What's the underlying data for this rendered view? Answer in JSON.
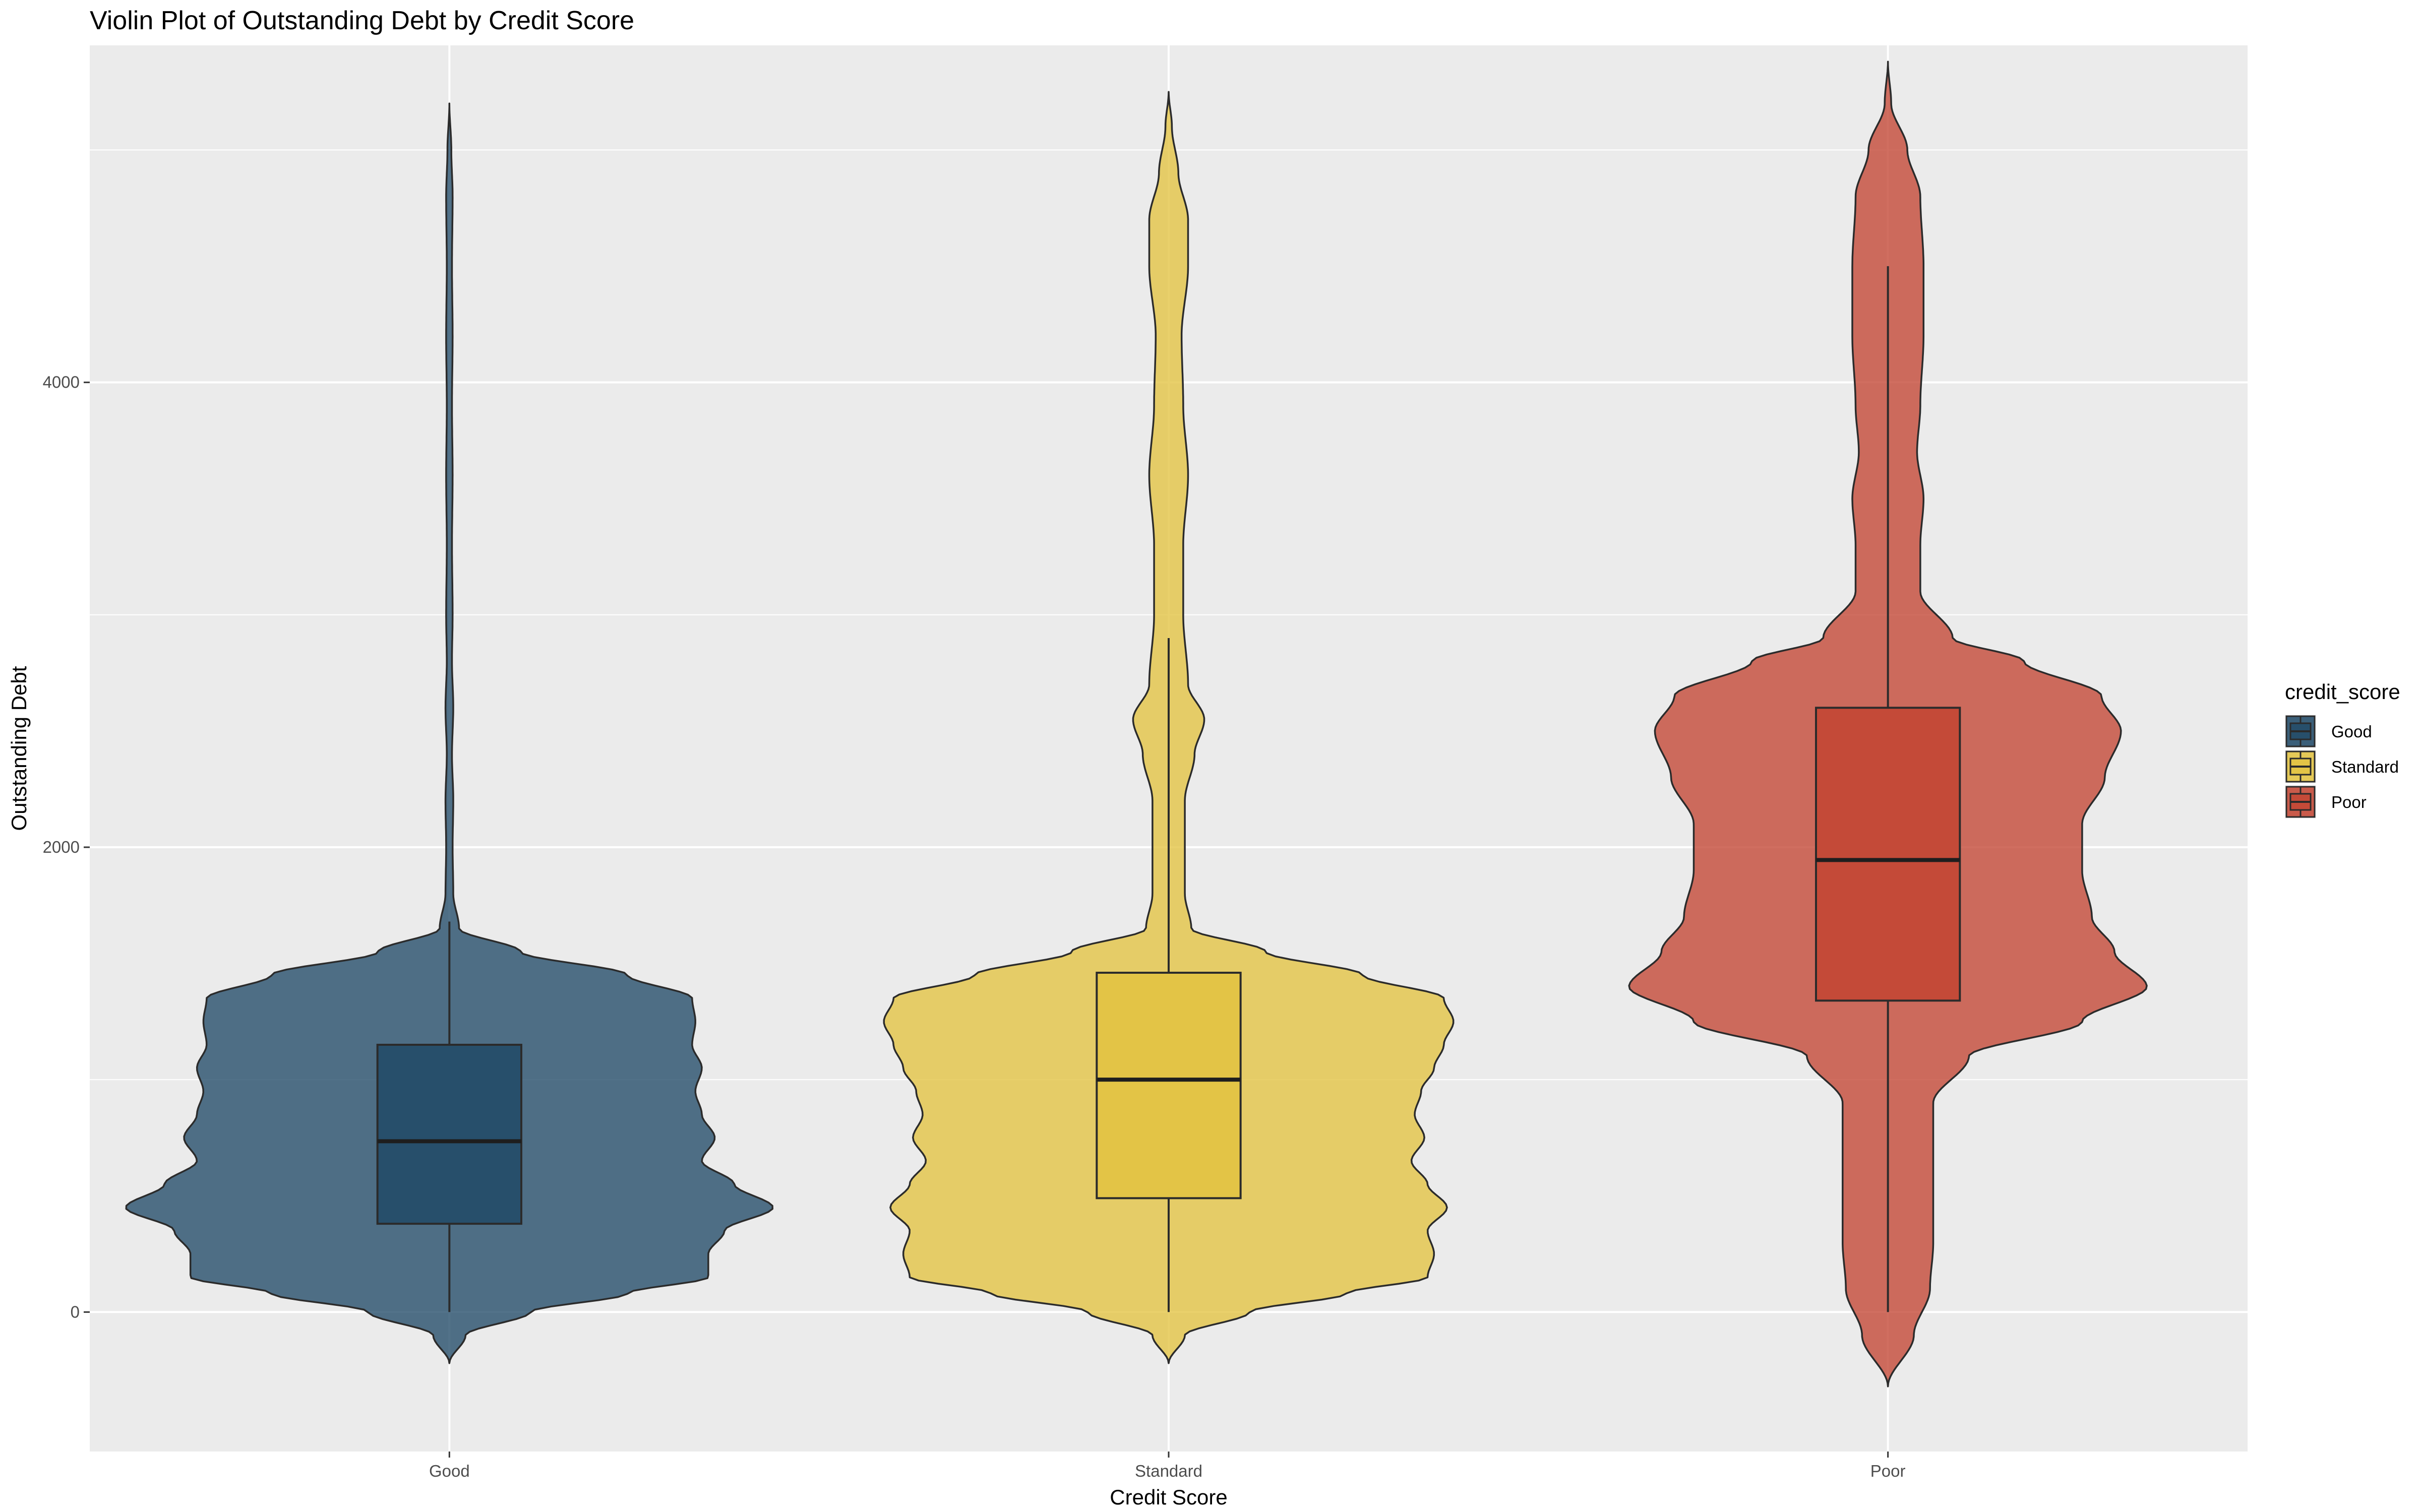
{
  "chart_data": {
    "type": "violin",
    "title": "Violin Plot of Outstanding Debt by Credit Score",
    "xlabel": "Credit Score",
    "ylabel": "Outstanding Debt",
    "categories": [
      "Good",
      "Standard",
      "Poor"
    ],
    "y_ticks": [
      0,
      2000,
      4000
    ],
    "ylim": [
      -600,
      5450
    ],
    "grid": true,
    "legend": {
      "title": "credit_score",
      "position": "right",
      "entries": [
        "Good",
        "Standard",
        "Poor"
      ]
    },
    "colors": {
      "Good": "#274f6b",
      "Standard": "#e3c446",
      "Poor": "#c44a38"
    },
    "series": [
      {
        "name": "Good",
        "box": {
          "whisker_low": 0,
          "q1": 380,
          "median": 735,
          "q3": 1150,
          "whisker_high": 1680
        },
        "range": [
          -220,
          5200
        ],
        "density_profile": [
          [
            -220,
            0.0
          ],
          [
            -100,
            0.05
          ],
          [
            0,
            0.25
          ],
          [
            80,
            0.55
          ],
          [
            150,
            0.8
          ],
          [
            250,
            0.8
          ],
          [
            350,
            0.85
          ],
          [
            450,
            1.0
          ],
          [
            550,
            0.88
          ],
          [
            650,
            0.78
          ],
          [
            750,
            0.82
          ],
          [
            850,
            0.78
          ],
          [
            950,
            0.76
          ],
          [
            1050,
            0.78
          ],
          [
            1150,
            0.75
          ],
          [
            1250,
            0.76
          ],
          [
            1350,
            0.75
          ],
          [
            1450,
            0.55
          ],
          [
            1550,
            0.22
          ],
          [
            1650,
            0.03
          ],
          [
            1800,
            0.012
          ],
          [
            2000,
            0.01
          ],
          [
            2200,
            0.012
          ],
          [
            2400,
            0.008
          ],
          [
            2600,
            0.012
          ],
          [
            2800,
            0.008
          ],
          [
            3000,
            0.01
          ],
          [
            3300,
            0.008
          ],
          [
            3600,
            0.01
          ],
          [
            3900,
            0.008
          ],
          [
            4200,
            0.01
          ],
          [
            4500,
            0.008
          ],
          [
            4800,
            0.01
          ],
          [
            5000,
            0.006
          ],
          [
            5200,
            0.0
          ]
        ]
      },
      {
        "name": "Standard",
        "box": {
          "whisker_low": 0,
          "q1": 490,
          "median": 1000,
          "q3": 1460,
          "whisker_high": 2900
        },
        "range": [
          -220,
          5250
        ],
        "density_profile": [
          [
            -220,
            0.0
          ],
          [
            -100,
            0.05
          ],
          [
            0,
            0.25
          ],
          [
            80,
            0.55
          ],
          [
            150,
            0.8
          ],
          [
            250,
            0.82
          ],
          [
            350,
            0.8
          ],
          [
            450,
            0.86
          ],
          [
            550,
            0.8
          ],
          [
            650,
            0.75
          ],
          [
            750,
            0.79
          ],
          [
            850,
            0.76
          ],
          [
            950,
            0.78
          ],
          [
            1050,
            0.82
          ],
          [
            1150,
            0.85
          ],
          [
            1250,
            0.88
          ],
          [
            1350,
            0.85
          ],
          [
            1450,
            0.6
          ],
          [
            1550,
            0.3
          ],
          [
            1650,
            0.07
          ],
          [
            1800,
            0.05
          ],
          [
            2000,
            0.05
          ],
          [
            2200,
            0.05
          ],
          [
            2400,
            0.08
          ],
          [
            2550,
            0.11
          ],
          [
            2700,
            0.06
          ],
          [
            3000,
            0.045
          ],
          [
            3300,
            0.045
          ],
          [
            3600,
            0.06
          ],
          [
            3900,
            0.045
          ],
          [
            4200,
            0.04
          ],
          [
            4500,
            0.06
          ],
          [
            4700,
            0.06
          ],
          [
            4900,
            0.03
          ],
          [
            5100,
            0.01
          ],
          [
            5250,
            0.0
          ]
        ]
      },
      {
        "name": "Poor",
        "box": {
          "whisker_low": 0,
          "q1": 1340,
          "median": 1945,
          "q3": 2600,
          "whisker_high": 4500
        },
        "range": [
          -320,
          5380
        ],
        "density_profile": [
          [
            -320,
            0.0
          ],
          [
            -100,
            0.08
          ],
          [
            100,
            0.13
          ],
          [
            300,
            0.14
          ],
          [
            600,
            0.14
          ],
          [
            900,
            0.14
          ],
          [
            1100,
            0.25
          ],
          [
            1250,
            0.6
          ],
          [
            1400,
            0.8
          ],
          [
            1550,
            0.7
          ],
          [
            1700,
            0.63
          ],
          [
            1900,
            0.6
          ],
          [
            2100,
            0.6
          ],
          [
            2300,
            0.67
          ],
          [
            2500,
            0.72
          ],
          [
            2650,
            0.66
          ],
          [
            2800,
            0.42
          ],
          [
            2900,
            0.2
          ],
          [
            3100,
            0.1
          ],
          [
            3300,
            0.1
          ],
          [
            3500,
            0.11
          ],
          [
            3700,
            0.09
          ],
          [
            3900,
            0.1
          ],
          [
            4200,
            0.11
          ],
          [
            4500,
            0.11
          ],
          [
            4800,
            0.1
          ],
          [
            5000,
            0.06
          ],
          [
            5200,
            0.01
          ],
          [
            5380,
            0.0
          ]
        ]
      }
    ]
  }
}
